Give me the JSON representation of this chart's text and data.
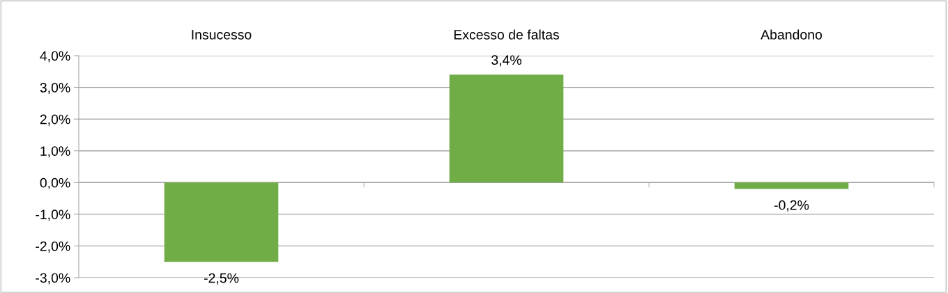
{
  "chart_data": {
    "type": "bar",
    "categories": [
      "Insucesso",
      "Excesso de faltas",
      "Abandono"
    ],
    "values": [
      -2.5,
      3.4,
      -0.2
    ],
    "value_labels": [
      "-2,5%",
      "3,4%",
      "-0,2%"
    ],
    "color": "#70ad47",
    "ylim": [
      -3,
      4
    ],
    "yticks": [
      {
        "value": -3,
        "label": "-3,0%"
      },
      {
        "value": -2,
        "label": "-2,0%"
      },
      {
        "value": -1,
        "label": "-1,0%"
      },
      {
        "value": 0,
        "label": "0,0%"
      },
      {
        "value": 1,
        "label": "1,0%"
      },
      {
        "value": 2,
        "label": "2,0%"
      },
      {
        "value": 3,
        "label": "3,0%"
      },
      {
        "value": 4,
        "label": "4,0%"
      }
    ],
    "grid": "y"
  }
}
